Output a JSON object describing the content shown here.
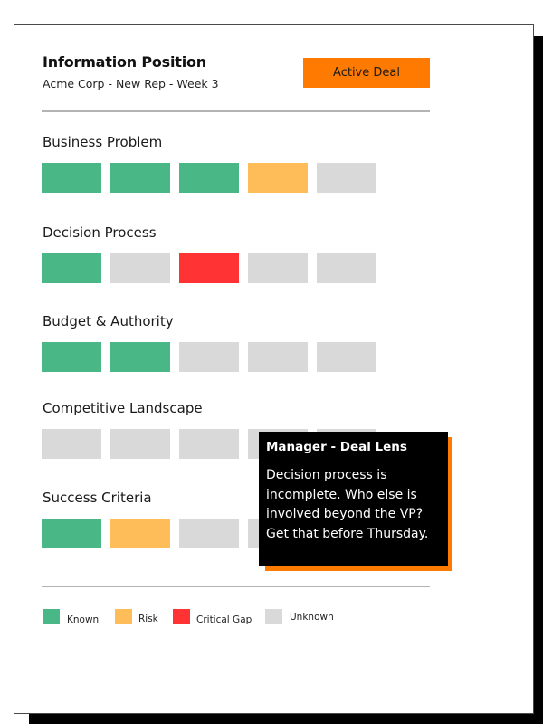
{
  "header": {
    "title": "Information Position",
    "subtitle": "Acme Corp - New Rep - Week 3",
    "badge_label": "Active Deal"
  },
  "colors": {
    "known": "#4ab886",
    "risk": "#ffbd5a",
    "critical_gap": "#ff3333",
    "unknown": "#d9d9d9",
    "accent": "#ff7a00"
  },
  "categories": [
    {
      "label": "Business Problem",
      "statuses": [
        "known",
        "known",
        "known",
        "risk",
        "unknown"
      ]
    },
    {
      "label": "Decision Process",
      "statuses": [
        "known",
        "unknown",
        "critical_gap",
        "unknown",
        "unknown"
      ]
    },
    {
      "label": "Budget & Authority",
      "statuses": [
        "known",
        "known",
        "unknown",
        "unknown",
        "unknown"
      ]
    },
    {
      "label": "Competitive Landscape",
      "statuses": [
        "unknown",
        "unknown",
        "unknown",
        "unknown",
        "unknown"
      ]
    },
    {
      "label": "Success Criteria",
      "statuses": [
        "known",
        "risk",
        "unknown",
        "unknown",
        "unknown"
      ]
    }
  ],
  "legend": [
    {
      "key": "known",
      "label": "Known"
    },
    {
      "key": "risk",
      "label": "Risk"
    },
    {
      "key": "critical_gap",
      "label": "Critical Gap"
    },
    {
      "key": "unknown",
      "label": "Unknown"
    }
  ],
  "tooltip": {
    "title": "Manager - Deal Lens",
    "body": "Decision process is incomplete. Who else is involved beyond the VP? Get that before Thursday."
  }
}
